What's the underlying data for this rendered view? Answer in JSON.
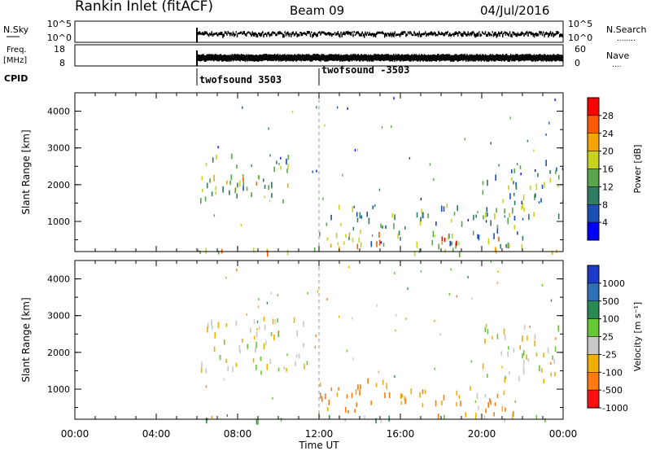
{
  "header": {
    "station": "Rankin Inlet (fitACF)",
    "beam": "Beam 09",
    "date": "04/Jul/2016"
  },
  "noise_panel": {
    "left_label": "N.Sky",
    "left_ticks": [
      "10^5",
      "10^0"
    ],
    "right_ticks": [
      "10^5",
      "10^0"
    ],
    "right_label": "N.Search",
    "right_label_dots": "........"
  },
  "freq_panel": {
    "left_label_top": "Freq.",
    "left_label_bottom": "[MHz]",
    "left_ticks": [
      "18",
      "8"
    ],
    "right_ticks": [
      "60",
      "0"
    ],
    "right_label": "Nave",
    "right_label_dots": "...."
  },
  "cpid": {
    "label": "CPID",
    "segments": [
      {
        "start_hour": 6,
        "text": "twofsound 3503"
      },
      {
        "start_hour": 12,
        "text": "twofsound -3503"
      }
    ]
  },
  "time_axis": {
    "label": "Time UT",
    "range_hours": [
      0,
      24
    ],
    "tick_labels": [
      "00:00",
      "04:00",
      "08:00",
      "12:00",
      "16:00",
      "20:00",
      "00:00"
    ]
  },
  "chart_data": [
    {
      "type": "heatmap",
      "name": "power",
      "ylabel": "Slant Range [km]",
      "ylim": [
        180,
        4500
      ],
      "yticks": [
        "1000",
        "2000",
        "3000",
        "4000"
      ],
      "colorbar_label": "Power [dB]",
      "colorbar_ticks": [
        "4",
        "8",
        "12",
        "16",
        "20",
        "24",
        "28"
      ],
      "colors": [
        "#0000ff",
        "#1a4fb5",
        "#2e7d62",
        "#5aa64a",
        "#c8d21e",
        "#f4a300",
        "#ff5a00",
        "#ff0000"
      ],
      "approx_regions": [
        {
          "t": [
            6.0,
            24.0
          ],
          "r": [
            180,
            300
          ],
          "v": 20
        },
        {
          "t": [
            6.1,
            10.5
          ],
          "r": [
            1600,
            2900
          ],
          "v": 14
        },
        {
          "t": [
            6.5,
            9.0
          ],
          "r": [
            1900,
            2300
          ],
          "v": 19
        },
        {
          "t": [
            12.0,
            22.0
          ],
          "r": [
            350,
            1500
          ],
          "v": 12
        },
        {
          "t": [
            12.5,
            15.5
          ],
          "r": [
            300,
            800
          ],
          "v": 23
        },
        {
          "t": [
            18.0,
            21.5
          ],
          "r": [
            250,
            700
          ],
          "v": 25
        },
        {
          "t": [
            20.0,
            23.8
          ],
          "r": [
            1200,
            2700
          ],
          "v": 13
        }
      ]
    },
    {
      "type": "heatmap",
      "name": "velocity",
      "ylabel": "Slant Range [km]",
      "ylim": [
        180,
        4500
      ],
      "yticks": [
        "1000",
        "2000",
        "3000",
        "4000"
      ],
      "colorbar_label": "Velocity [m s⁻¹]",
      "colorbar_ticks": [
        "1000",
        "500",
        "100",
        "25",
        "-25",
        "-100",
        "-500",
        "-1000"
      ],
      "colors": [
        "#1a3cc8",
        "#2e70b4",
        "#2a8a52",
        "#66c832",
        "#c8c8c8",
        "#f0b000",
        "#ff7a10",
        "#ff1010"
      ],
      "approx_regions": [
        {
          "t": [
            6.1,
            11.5
          ],
          "r": [
            1500,
            3000
          ],
          "v": 0
        },
        {
          "t": [
            6.0,
            24.0
          ],
          "r": [
            180,
            300
          ],
          "v": 60
        },
        {
          "t": [
            12.0,
            16.5
          ],
          "r": [
            400,
            1300
          ],
          "v": -150
        },
        {
          "t": [
            16.0,
            22.0
          ],
          "r": [
            300,
            1100
          ],
          "v": -120
        },
        {
          "t": [
            20.0,
            23.8
          ],
          "r": [
            1200,
            2800
          ],
          "v": 0
        }
      ]
    }
  ]
}
